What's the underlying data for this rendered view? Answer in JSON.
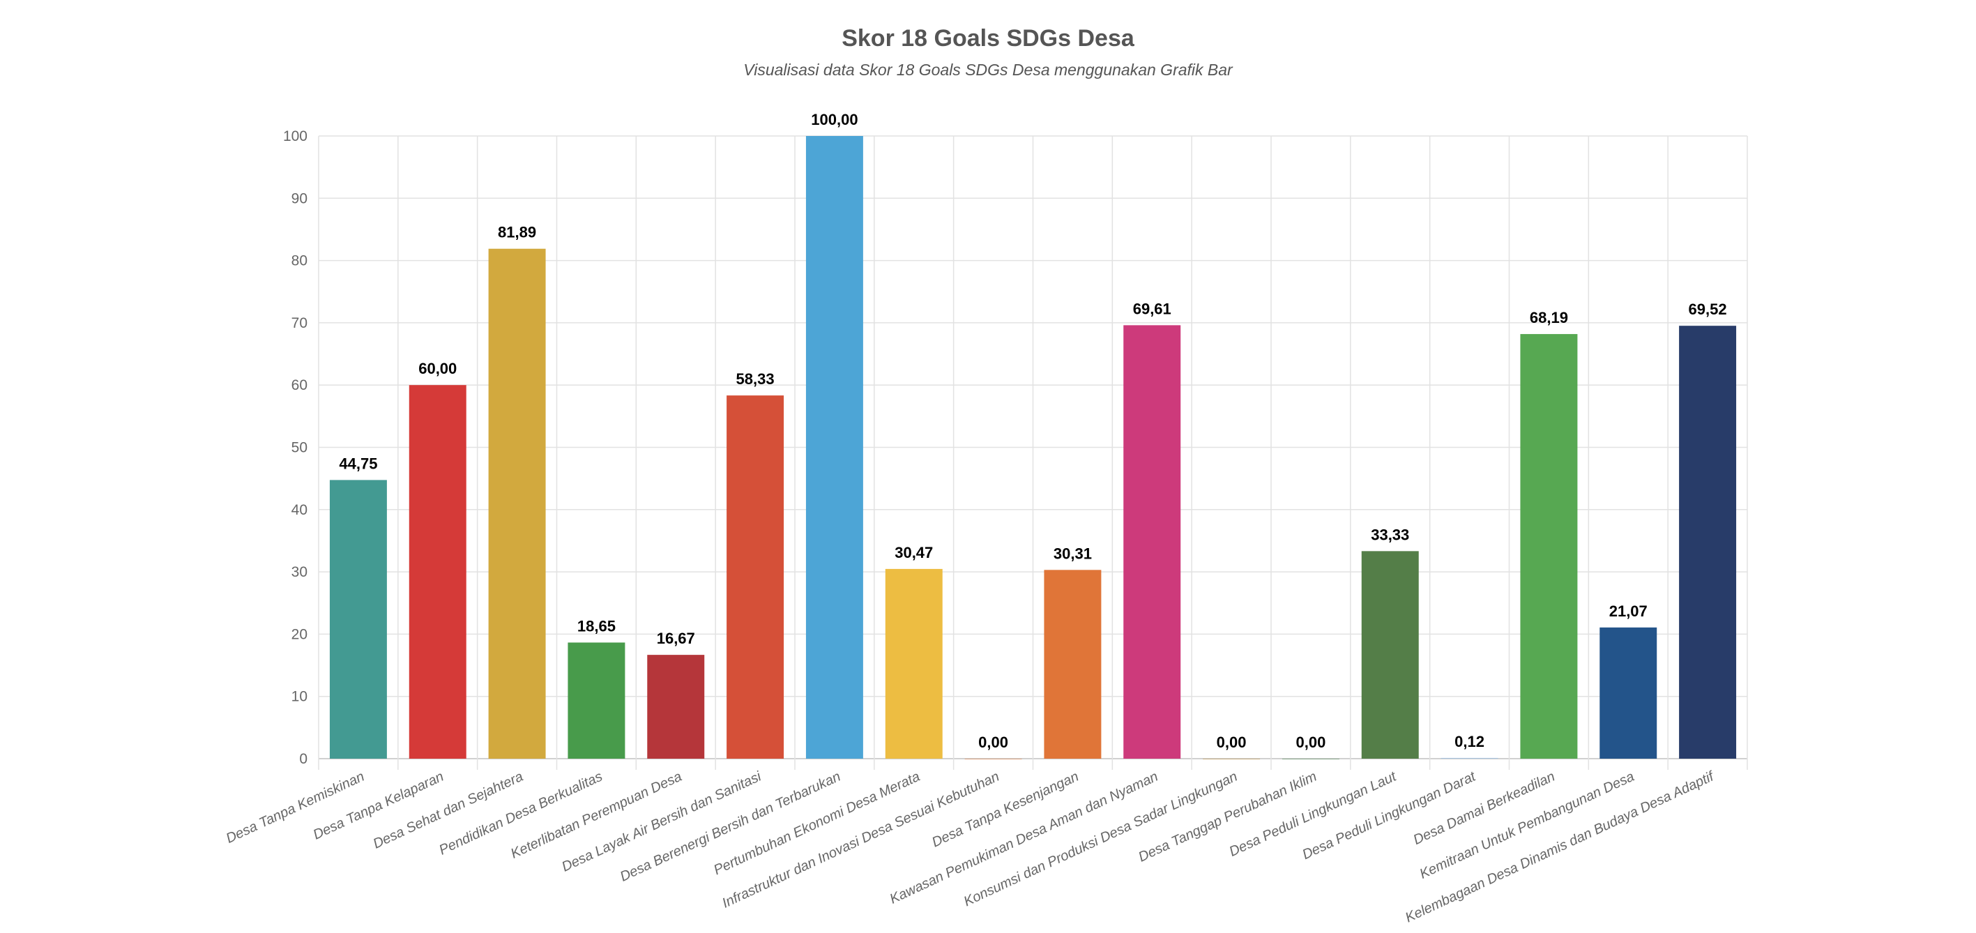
{
  "chart_data": {
    "type": "bar",
    "title": "Skor 18 Goals SDGs Desa",
    "subtitle": "Visualisasi data Skor 18 Goals SDGs Desa menggunakan Grafik Bar",
    "xlabel": "",
    "ylabel": "",
    "ylim": [
      0,
      100
    ],
    "yticks": [
      0,
      10,
      20,
      30,
      40,
      50,
      60,
      70,
      80,
      90,
      100
    ],
    "grid": true,
    "categories": [
      "Desa Tanpa Kemiskinan",
      "Desa Tanpa Kelaparan",
      "Desa Sehat dan Sejahtera",
      "Pendidikan Desa Berkualitas",
      "Keterlibatan Perempuan Desa",
      "Desa Layak Air Bersih dan Sanitasi",
      "Desa Berenergi Bersih dan Terbarukan",
      "Pertumbuhan Ekonomi Desa Merata",
      "Infrastruktur dan Inovasi Desa Sesuai Kebutuhan",
      "Desa Tanpa Kesenjangan",
      "Kawasan Pemukiman Desa Aman dan Nyaman",
      "Konsumsi dan Produksi Desa Sadar Lingkungan",
      "Desa Tanggap Perubahan Iklim",
      "Desa Peduli Lingkungan Laut",
      "Desa Peduli Lingkungan Darat",
      "Desa Damai Berkeadilan",
      "Kemitraan Untuk Pembangunan Desa",
      "Kelembagaan Desa Dinamis dan Budaya Desa Adaptif"
    ],
    "values": [
      44.75,
      60.0,
      81.89,
      18.65,
      16.67,
      58.33,
      100.0,
      30.47,
      0.0,
      30.31,
      69.61,
      0.0,
      0.0,
      33.33,
      0.12,
      68.19,
      21.07,
      69.52
    ],
    "value_labels": [
      "44,75",
      "60,00",
      "81,89",
      "18,65",
      "16,67",
      "58,33",
      "100,00",
      "30,47",
      "0,00",
      "30,31",
      "69,61",
      "0,00",
      "0,00",
      "33,33",
      "0,12",
      "68,19",
      "21,07",
      "69,52"
    ],
    "colors": [
      "#439A92",
      "#D53A38",
      "#D2A93E",
      "#489B4B",
      "#B5363A",
      "#D55038",
      "#4DA5D6",
      "#EDBD42",
      "#E8732F",
      "#E07538",
      "#CD3A7B",
      "#C08C2F",
      "#3F7E44",
      "#547E48",
      "#A9C4E0",
      "#57A852",
      "#23548A",
      "#283C69"
    ]
  }
}
